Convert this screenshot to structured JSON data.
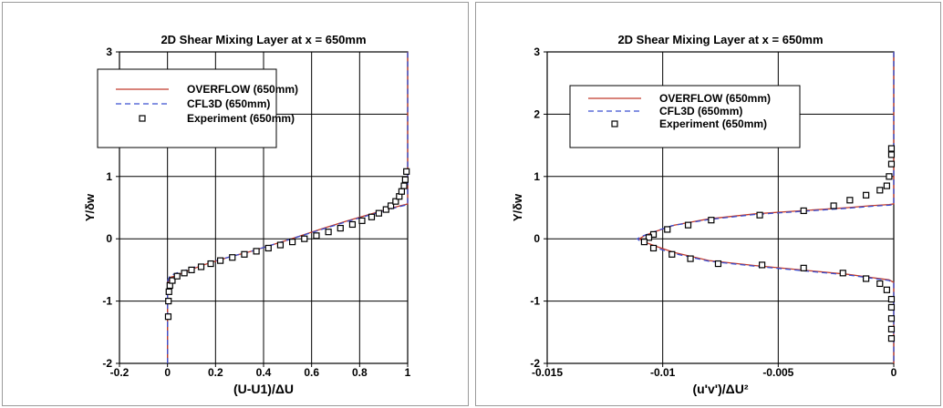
{
  "colors": {
    "overflow": "#c0392b",
    "cfl3d": "#3a4fd0",
    "experiment": "#000000",
    "grid": "#000000"
  },
  "chart_data": [
    {
      "type": "line",
      "title": "2D Shear Mixing Layer at x = 650mm",
      "xlabel": "(U-U1)/ΔU",
      "ylabel": "Y/δw",
      "xlim": [
        -0.2,
        1
      ],
      "ylim": [
        -2,
        3
      ],
      "xticks": [
        "-0.2",
        "0",
        "0.2",
        "0.4",
        "0.6",
        "0.8",
        "1"
      ],
      "yticks": [
        "-2",
        "-1",
        "0",
        "1",
        "2",
        "3"
      ],
      "grid": true,
      "legend": "top-left",
      "series": [
        {
          "name": "OVERFLOW (650mm)",
          "style": "solid",
          "x": [
            0,
            0,
            0,
            0.003,
            0.01,
            0.03,
            0.08,
            0.15,
            0.25,
            0.35,
            0.5,
            0.65,
            0.75,
            0.85,
            0.93,
            0.97,
            0.99,
            1,
            1,
            1
          ],
          "y": [
            -2,
            -1.2,
            -0.75,
            -0.68,
            -0.62,
            -0.6,
            -0.52,
            -0.42,
            -0.3,
            -0.2,
            -0.02,
            0.17,
            0.29,
            0.4,
            0.49,
            0.53,
            0.55,
            0.56,
            1.5,
            3
          ]
        },
        {
          "name": "CFL3D (650mm)",
          "style": "dashed",
          "x": [
            0,
            0,
            0.002,
            0.01,
            0.03,
            0.08,
            0.15,
            0.25,
            0.35,
            0.5,
            0.65,
            0.75,
            0.85,
            0.93,
            0.97,
            0.99,
            1,
            1,
            1
          ],
          "y": [
            -2,
            -0.75,
            -0.66,
            -0.6,
            -0.56,
            -0.5,
            -0.41,
            -0.3,
            -0.2,
            -0.02,
            0.16,
            0.28,
            0.39,
            0.48,
            0.52,
            0.54,
            0.55,
            1.5,
            3
          ]
        },
        {
          "name": "Experiment (650mm)",
          "style": "marker",
          "x": [
            0.003,
            0.004,
            0.006,
            0.01,
            0.02,
            0.04,
            0.07,
            0.1,
            0.14,
            0.18,
            0.22,
            0.27,
            0.32,
            0.37,
            0.42,
            0.47,
            0.52,
            0.57,
            0.62,
            0.67,
            0.72,
            0.77,
            0.81,
            0.85,
            0.88,
            0.91,
            0.93,
            0.95,
            0.965,
            0.975,
            0.985,
            0.99,
            0.995
          ],
          "y": [
            -1.25,
            -1.0,
            -0.85,
            -0.75,
            -0.67,
            -0.6,
            -0.55,
            -0.5,
            -0.45,
            -0.4,
            -0.35,
            -0.3,
            -0.25,
            -0.2,
            -0.15,
            -0.1,
            -0.05,
            0.0,
            0.05,
            0.11,
            0.17,
            0.23,
            0.29,
            0.35,
            0.41,
            0.47,
            0.53,
            0.6,
            0.68,
            0.76,
            0.85,
            0.95,
            1.08
          ]
        }
      ]
    },
    {
      "type": "line",
      "title": "2D Shear Mixing Layer at x = 650mm",
      "xlabel": "(u'v')/ΔU²",
      "ylabel": "Y/δw",
      "xlim": [
        -0.015,
        0
      ],
      "ylim": [
        -2,
        3
      ],
      "xticks": [
        "-0.015",
        "-0.01",
        "-0.005",
        "0"
      ],
      "yticks": [
        "-2",
        "-1",
        "0",
        "1",
        "2",
        "3"
      ],
      "grid": true,
      "legend": "top-left",
      "series": [
        {
          "name": "OVERFLOW (650mm)",
          "style": "solid",
          "x": [
            0,
            0,
            -0.0002,
            -0.001,
            -0.002,
            -0.004,
            -0.006,
            -0.008,
            -0.0095,
            -0.0103,
            -0.0108,
            -0.011,
            -0.0108,
            -0.0103,
            -0.0095,
            -0.008,
            -0.006,
            -0.004,
            -0.002,
            -0.001,
            -0.0002,
            0,
            0
          ],
          "y": [
            3,
            0.56,
            0.55,
            0.53,
            0.5,
            0.45,
            0.4,
            0.32,
            0.22,
            0.12,
            0.05,
            0.0,
            -0.05,
            -0.12,
            -0.22,
            -0.35,
            -0.43,
            -0.5,
            -0.57,
            -0.62,
            -0.66,
            -0.7,
            -2
          ]
        },
        {
          "name": "CFL3D (650mm)",
          "style": "dashed",
          "x": [
            0,
            0,
            -0.0002,
            -0.001,
            -0.002,
            -0.004,
            -0.006,
            -0.008,
            -0.0096,
            -0.0104,
            -0.0109,
            -0.0111,
            -0.0109,
            -0.0104,
            -0.0096,
            -0.008,
            -0.006,
            -0.004,
            -0.002,
            -0.001,
            -0.0002,
            0,
            0
          ],
          "y": [
            3,
            0.55,
            0.54,
            0.52,
            0.49,
            0.44,
            0.39,
            0.31,
            0.21,
            0.11,
            0.04,
            0.0,
            -0.06,
            -0.13,
            -0.23,
            -0.36,
            -0.44,
            -0.51,
            -0.58,
            -0.63,
            -0.67,
            -0.71,
            -2
          ]
        },
        {
          "name": "Experiment (650mm)",
          "style": "marker",
          "x": [
            -0.0001,
            -0.0001,
            -0.0001,
            -0.0002,
            -0.0003,
            -0.0006,
            -0.0012,
            -0.0019,
            -0.0026,
            -0.0039,
            -0.0058,
            -0.0079,
            -0.0089,
            -0.0098,
            -0.0104,
            -0.0106,
            -0.0108,
            -0.0104,
            -0.0096,
            -0.0088,
            -0.0076,
            -0.0057,
            -0.0039,
            -0.0022,
            -0.0012,
            -0.0006,
            -0.0003,
            -0.0001,
            -0.0001,
            -0.0001,
            -0.0001,
            -0.0001
          ],
          "y": [
            1.45,
            1.35,
            1.2,
            1.0,
            0.85,
            0.78,
            0.7,
            0.62,
            0.53,
            0.45,
            0.38,
            0.3,
            0.22,
            0.15,
            0.07,
            0.02,
            -0.05,
            -0.15,
            -0.25,
            -0.32,
            -0.4,
            -0.42,
            -0.47,
            -0.55,
            -0.64,
            -0.72,
            -0.82,
            -0.97,
            -1.1,
            -1.28,
            -1.45,
            -1.6
          ]
        }
      ]
    }
  ]
}
